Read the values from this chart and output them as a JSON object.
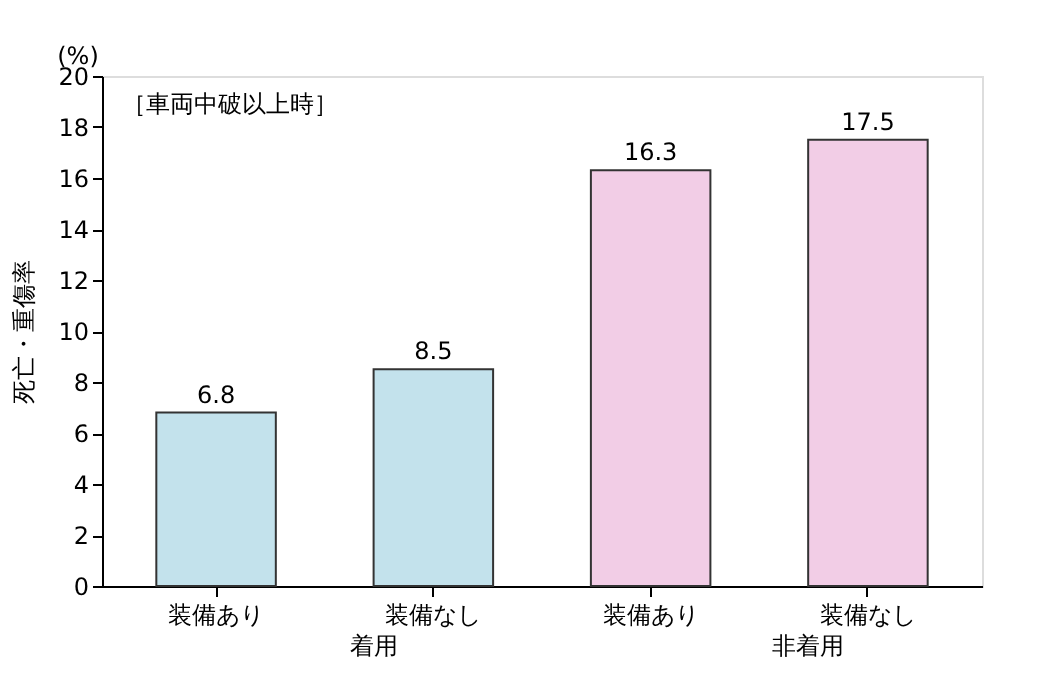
{
  "chart_data": {
    "type": "bar",
    "subtitle": "［車両中破以上時］",
    "ylabel": "死亡・重傷率",
    "categories": [
      "装備あり",
      "装備なし",
      "装備あり",
      "装備なし"
    ],
    "values": [
      6.8,
      8.5,
      16.3,
      17.5
    ],
    "colors": [
      "#c3e2ec",
      "#c3e2ec",
      "#f2cde6",
      "#f2cde6"
    ],
    "ylim": [
      0,
      20
    ],
    "yticks": [
      0,
      2,
      4,
      6,
      8,
      10,
      12,
      14,
      16,
      18,
      20
    ],
    "data_labels": true,
    "grid": false,
    "annotations": [
      "(%)",
      "着用",
      "非着用"
    ]
  }
}
